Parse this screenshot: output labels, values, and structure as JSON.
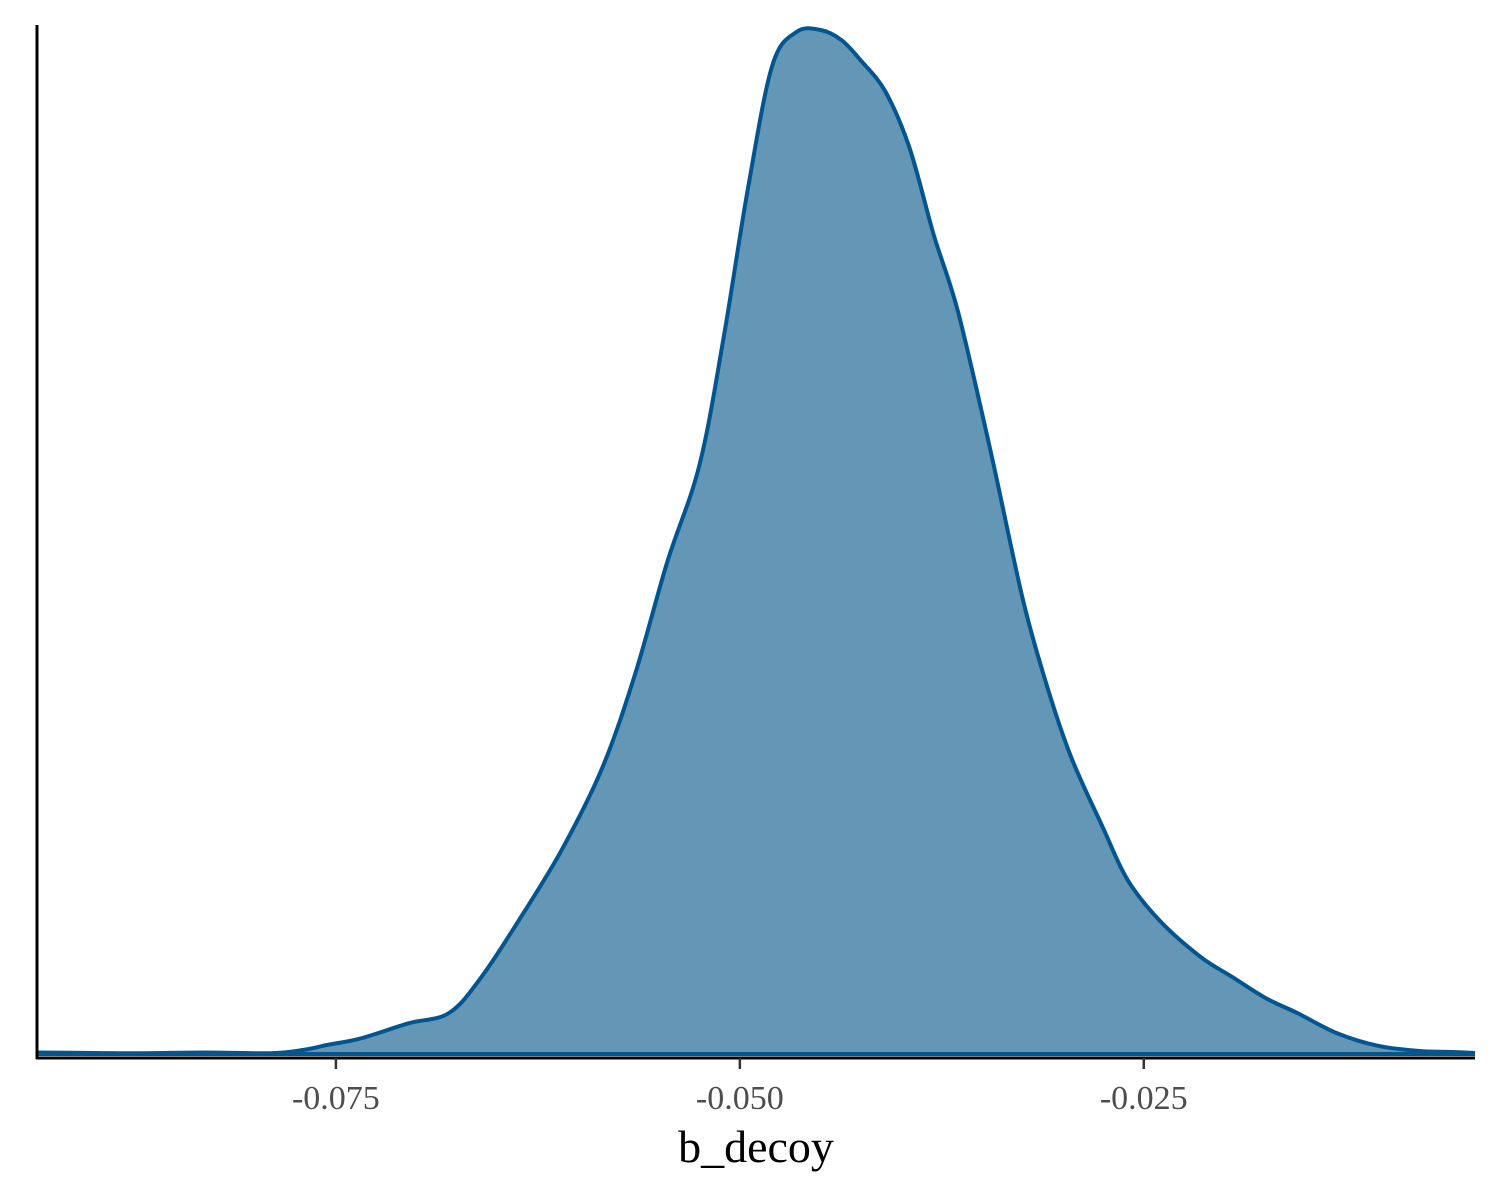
{
  "chart_data": {
    "type": "area",
    "title": "",
    "xlabel": "b_decoy",
    "ylabel": "",
    "xlim": [
      -0.0935,
      -0.0045
    ],
    "ylim": [
      0,
      1
    ],
    "x_ticks": [
      -0.075,
      -0.05,
      -0.025
    ],
    "x_tick_labels": [
      "-0.075",
      "-0.050",
      "-0.025"
    ],
    "y_axis_ticks_shown": false,
    "grid": false,
    "legend": "none",
    "fill_color": "#6497b5",
    "line_color": "#03558f",
    "series": [
      {
        "x": [
          -0.0935,
          -0.09,
          -0.087,
          -0.083,
          -0.079,
          -0.077,
          -0.0755,
          -0.0735,
          -0.0705,
          -0.068,
          -0.066,
          -0.0635,
          -0.061,
          -0.0585,
          -0.0565,
          -0.0545,
          -0.0525,
          -0.051,
          -0.0495,
          -0.048,
          -0.0465,
          -0.045,
          -0.0437,
          -0.0425,
          -0.041,
          -0.0395,
          -0.038,
          -0.0365,
          -0.0345,
          -0.0325,
          -0.031,
          -0.0295,
          -0.0275,
          -0.026,
          -0.024,
          -0.0215,
          -0.0195,
          -0.0175,
          -0.0155,
          -0.013,
          -0.0105,
          -0.008,
          -0.006,
          -0.0045
        ],
        "y": [
          0.0015,
          0.001,
          0.0008,
          0.0015,
          0.0008,
          0.004,
          0.009,
          0.015,
          0.03,
          0.04,
          0.075,
          0.135,
          0.2,
          0.28,
          0.37,
          0.48,
          0.575,
          0.7,
          0.845,
          0.965,
          0.998,
          1.0,
          0.99,
          0.97,
          0.94,
          0.885,
          0.8,
          0.725,
          0.59,
          0.445,
          0.36,
          0.29,
          0.22,
          0.17,
          0.13,
          0.095,
          0.075,
          0.055,
          0.04,
          0.02,
          0.008,
          0.003,
          0.002,
          0.001
        ]
      }
    ]
  }
}
